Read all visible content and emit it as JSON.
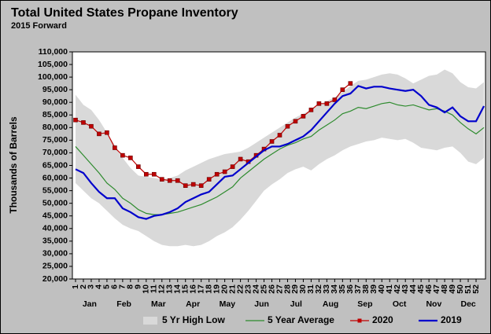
{
  "chart_data": {
    "type": "line",
    "title": "Total United States Propane Inventory",
    "subtitle": "2015 Forward",
    "y_label": "Thousands of Barrels",
    "months": [
      "Jan",
      "Feb",
      "Mar",
      "Apr",
      "May",
      "Jun",
      "Jul",
      "Aug",
      "Sep",
      "Oct",
      "Nov",
      "Dec"
    ],
    "x": [
      1,
      2,
      3,
      4,
      5,
      6,
      7,
      8,
      9,
      10,
      11,
      12,
      13,
      14,
      15,
      16,
      17,
      18,
      19,
      20,
      21,
      22,
      23,
      24,
      25,
      26,
      27,
      28,
      29,
      30,
      31,
      32,
      33,
      34,
      35,
      36,
      37,
      38,
      39,
      40,
      41,
      42,
      43,
      44,
      45,
      46,
      47,
      48,
      49,
      50,
      51,
      52,
      53
    ],
    "xlim": [
      0.6,
      53.2
    ],
    "xticks": [
      1,
      2,
      3,
      4,
      5,
      6,
      7,
      8,
      9,
      10,
      11,
      12,
      13,
      14,
      15,
      16,
      17,
      18,
      19,
      20,
      21,
      22,
      23,
      24,
      25,
      26,
      27,
      28,
      29,
      30,
      31,
      32,
      33,
      34,
      35,
      36,
      37,
      38,
      39,
      40,
      41,
      42,
      43,
      44,
      45,
      46,
      47,
      48,
      49,
      50,
      51,
      52
    ],
    "ylim": [
      20000,
      110000
    ],
    "yticks": [
      {
        "value": 20000,
        "label": "20,000"
      },
      {
        "value": 25000,
        "label": "25,000"
      },
      {
        "value": 30000,
        "label": "30,000"
      },
      {
        "value": 35000,
        "label": "35,000"
      },
      {
        "value": 40000,
        "label": "40,000"
      },
      {
        "value": 45000,
        "label": "45,000"
      },
      {
        "value": 50000,
        "label": "50,000"
      },
      {
        "value": 55000,
        "label": "55,000"
      },
      {
        "value": 60000,
        "label": "60,000"
      },
      {
        "value": 65000,
        "label": "65,000"
      },
      {
        "value": 70000,
        "label": "70,000"
      },
      {
        "value": 75000,
        "label": "75,000"
      },
      {
        "value": 80000,
        "label": "80,000"
      },
      {
        "value": 85000,
        "label": "85,000"
      },
      {
        "value": 90000,
        "label": "90,000"
      },
      {
        "value": 95000,
        "label": "95,000"
      },
      {
        "value": 100000,
        "label": "100,000"
      },
      {
        "value": 105000,
        "label": "105,000"
      },
      {
        "value": 110000,
        "label": "110,000"
      }
    ],
    "band": {
      "name": "5 Yr High Low",
      "color": "#d9d9d9",
      "high": [
        93000,
        89000,
        87000,
        83000,
        78000,
        73000,
        68000,
        64000,
        61000,
        60500,
        60000,
        59500,
        60000,
        61000,
        63000,
        64500,
        66000,
        67500,
        68500,
        69500,
        70000,
        70500,
        72000,
        74000,
        76000,
        78000,
        80000,
        82000,
        84000,
        85500,
        87000,
        89000,
        90500,
        92000,
        94000,
        96500,
        98500,
        99000,
        100000,
        101000,
        101500,
        101000,
        99500,
        97500,
        99000,
        100500,
        101000,
        103000,
        101500,
        98000,
        96000,
        95500,
        98000
      ],
      "low": [
        58000,
        55000,
        52000,
        50000,
        47000,
        44000,
        41500,
        40000,
        39000,
        37000,
        35000,
        33500,
        33000,
        33000,
        33500,
        33000,
        33500,
        35000,
        37000,
        38500,
        40500,
        43500,
        47000,
        51000,
        55000,
        57500,
        59500,
        62000,
        63500,
        64500,
        63000,
        65500,
        67500,
        69000,
        71000,
        72500,
        73500,
        74500,
        75000,
        76000,
        75500,
        75000,
        75500,
        74000,
        72000,
        71500,
        71000,
        72000,
        72500,
        70000,
        66500,
        65500,
        68000
      ]
    },
    "series": [
      {
        "name": "5 Year Average",
        "color": "#2e8b2e",
        "marker": false,
        "values": [
          72500,
          69000,
          65500,
          62000,
          58000,
          55500,
          52000,
          50000,
          47500,
          46000,
          45500,
          45500,
          46000,
          46500,
          47500,
          48500,
          49500,
          51000,
          52500,
          54500,
          56500,
          60000,
          62500,
          65000,
          67500,
          69500,
          71500,
          73000,
          74000,
          75500,
          76500,
          79000,
          81000,
          83000,
          85500,
          86500,
          88000,
          87500,
          88500,
          89500,
          90000,
          89000,
          88500,
          89000,
          88000,
          87000,
          87500,
          86500,
          85000,
          82000,
          79500,
          77500,
          80000
        ]
      },
      {
        "name": "2020",
        "color": "#c00000",
        "marker": true,
        "values": [
          83000,
          82000,
          80500,
          77500,
          78000,
          72000,
          69000,
          68000,
          64500,
          61500,
          61500,
          59500,
          59000,
          59000,
          57000,
          57500,
          57000,
          59500,
          61500,
          62500,
          64500,
          67500,
          66500,
          69000,
          71500,
          74500,
          77000,
          80500,
          82500,
          84500,
          87000,
          89500,
          89500,
          91000,
          95000,
          97500,
          null,
          null,
          null,
          null,
          null,
          null,
          null,
          null,
          null,
          null,
          null,
          null,
          null,
          null,
          null,
          null,
          null
        ]
      },
      {
        "name": "2019",
        "color": "#0000cc",
        "marker": false,
        "values": [
          63500,
          62000,
          58000,
          54500,
          52000,
          52000,
          48000,
          46500,
          44500,
          43800,
          45000,
          45500,
          46500,
          48000,
          50500,
          52000,
          53500,
          54500,
          57500,
          60500,
          61000,
          63500,
          66000,
          68500,
          71000,
          72500,
          72500,
          73500,
          75000,
          76500,
          79000,
          82500,
          86000,
          89500,
          92500,
          93500,
          96500,
          95500,
          96200,
          96200,
          95500,
          95000,
          94500,
          95000,
          92500,
          89000,
          88000,
          86000,
          88000,
          84500,
          82500,
          82500,
          88500
        ]
      }
    ]
  }
}
